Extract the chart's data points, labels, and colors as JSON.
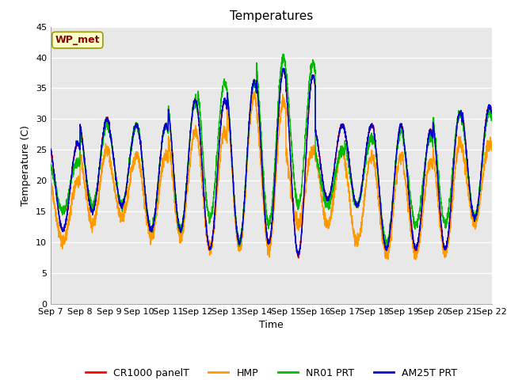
{
  "title": "Temperatures",
  "xlabel": "Time",
  "ylabel": "Temperature (C)",
  "ylim": [
    0,
    45
  ],
  "x_tick_labels": [
    "Sep 7",
    "Sep 8",
    "Sep 9",
    "Sep 10",
    "Sep 11",
    "Sep 12",
    "Sep 13",
    "Sep 14",
    "Sep 15",
    "Sep 16",
    "Sep 17",
    "Sep 18",
    "Sep 19",
    "Sep 20",
    "Sep 21",
    "Sep 22"
  ],
  "annotation_text": "WP_met",
  "annotation_bg": "#ffffcc",
  "annotation_fg": "#8b0000",
  "annotation_edge": "#999900",
  "fig_bg": "#ffffff",
  "plot_bg": "#e8e8e8",
  "grid_color": "#ffffff",
  "series_colors": [
    "#ff0000",
    "#ff9900",
    "#00bb00",
    "#0000cc"
  ],
  "series_names": [
    "CR1000 panelT",
    "HMP",
    "NR01 PRT",
    "AM25T PRT"
  ],
  "title_fontsize": 11,
  "label_fontsize": 9,
  "tick_fontsize": 8,
  "legend_fontsize": 9,
  "day_peaks_am25t": [
    26,
    30,
    29,
    29,
    33,
    33,
    36,
    38,
    37,
    29,
    29,
    29,
    28,
    31,
    32
  ],
  "day_mins_am25t": [
    12,
    15,
    16,
    12,
    12,
    9,
    10,
    10,
    8,
    17,
    16,
    9,
    9,
    9,
    14
  ],
  "day_peaks_cr": [
    26,
    30,
    29,
    29,
    33,
    33,
    36,
    38,
    37,
    29,
    29,
    29,
    28,
    31,
    32
  ],
  "day_mins_cr": [
    12,
    15,
    16,
    12,
    12,
    9,
    10,
    10,
    8,
    17,
    16,
    9,
    9,
    9,
    14
  ],
  "day_peaks_hmp": [
    20,
    25,
    24,
    24,
    28,
    28,
    34,
    33,
    25,
    25,
    24,
    24,
    23,
    26,
    26
  ],
  "day_mins_hmp": [
    10,
    13,
    14,
    11,
    11,
    9,
    9,
    9,
    13,
    13,
    10,
    8,
    8,
    8,
    13
  ],
  "day_peaks_nr01": [
    23,
    29,
    29,
    29,
    33,
    36,
    36,
    40,
    39,
    25,
    27,
    28,
    27,
    31,
    31
  ],
  "day_mins_nr01": [
    15,
    16,
    16,
    12,
    12,
    14,
    10,
    13,
    16,
    16,
    16,
    10,
    13,
    13,
    14
  ]
}
